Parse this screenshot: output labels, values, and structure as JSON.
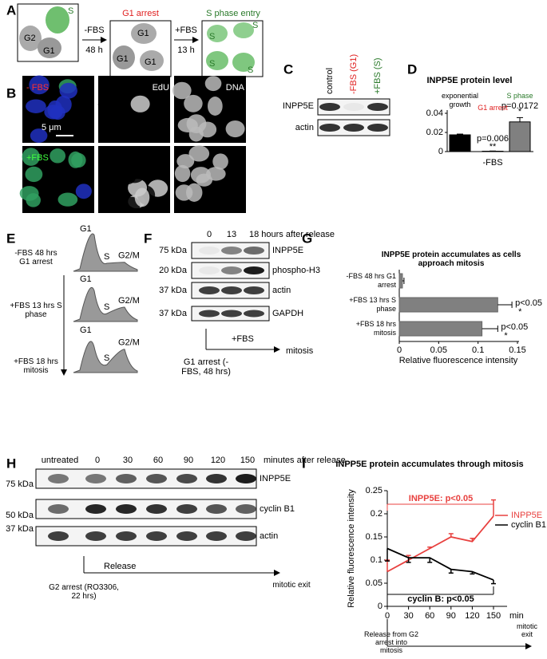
{
  "letters": [
    "A",
    "B",
    "C",
    "D",
    "E",
    "F",
    "G",
    "H",
    "I"
  ],
  "A": {
    "cells_1": [
      "S",
      "G2",
      "G1"
    ],
    "arrow_1": [
      "-FBS",
      "48 h"
    ],
    "heading_2": "G1 arrest",
    "cells_2": [
      "G1",
      "G1",
      "G1"
    ],
    "arrow_2": [
      "+FBS",
      "13 h"
    ],
    "heading_3": "S phase entry",
    "cells_3": [
      "S",
      "S",
      "S",
      "S"
    ]
  },
  "B": {
    "conditions": [
      "- FBS",
      "+FBS"
    ],
    "channels": [
      "EdU",
      "DNA"
    ],
    "scale": "5 μm"
  },
  "C": {
    "lanes": [
      "control",
      "-FBS (G1)",
      "+FBS (S)"
    ],
    "proteins": [
      "INPP5E",
      "actin"
    ]
  },
  "E": {
    "conditions": [
      "-FBS 48 hrs G1 arrest",
      "+FBS 13 hrs S phase",
      "+FBS 18 hrs mitosis"
    ],
    "phases": [
      "G1",
      "S",
      "G2/M"
    ]
  },
  "F": {
    "times": [
      "0",
      "13",
      "18 hours after release"
    ],
    "markers": [
      "75 kDa",
      "20 kDa",
      "37 kDa",
      "37 kDa"
    ],
    "proteins": [
      "INPP5E",
      "phospho-H3",
      "actin",
      "GAPDH"
    ],
    "treatment": "+FBS",
    "start": "G1 arrest (-FBS, 48 hrs)",
    "end": "mitosis"
  },
  "H": {
    "times": [
      "untreated",
      "0",
      "30",
      "60",
      "90",
      "120",
      "150",
      "minutes after release"
    ],
    "markers": [
      "75 kDa",
      "50 kDa",
      "37 kDa"
    ],
    "proteins": [
      "INPP5E",
      "cyclin B1",
      "actin"
    ],
    "treatment": "Release",
    "start": "G2 arrest (RO3306, 22 hrs)",
    "end": "mitotic exit"
  },
  "chart_data": [
    {
      "type": "bar",
      "title": "INPP5E protein level",
      "categories": [
        "exponential growth",
        "G1 arrest",
        "S phase"
      ],
      "category_colors": [
        "#000000",
        "#e02020",
        "#2a7a2a"
      ],
      "values": [
        0.0175,
        0.0004,
        0.031
      ],
      "errors": [
        0.0008,
        0.0002,
        0.0045
      ],
      "colors": [
        "#000000",
        "#000000",
        "#808080"
      ],
      "ylim": [
        0,
        0.04
      ],
      "yticks": [
        0,
        0.02,
        0.04
      ],
      "annotations": [
        "p=0.006",
        "**",
        "p=0.0172",
        "*"
      ],
      "group_label": "-FBS"
    },
    {
      "type": "bar",
      "horizontal": true,
      "title": "INPP5E protein accumulates as cells approach mitosis",
      "categories": [
        "-FBS 48 hrs G1 arrest",
        "+FBS 13 hrs S phase",
        "+FBS 18 hrs mitosis"
      ],
      "values": [
        0.004,
        0.125,
        0.105
      ],
      "errors": [
        0.002,
        0.018,
        0.02
      ],
      "color": "#808080",
      "xlim": [
        0,
        0.15
      ],
      "xticks": [
        0,
        0.05,
        0.1,
        0.15
      ],
      "xlabel": "Relative fluorescence intensity",
      "annotations": [
        "p<0.05",
        "*",
        "p<0.05",
        "*"
      ]
    },
    {
      "type": "line",
      "title": "INPP5E protein accumulates through mitosis",
      "x": [
        0,
        30,
        60,
        90,
        120,
        150
      ],
      "xlim": [
        0,
        150
      ],
      "xticks": [
        0,
        30,
        60,
        90,
        120,
        150
      ],
      "x_unit": "min",
      "ylim": [
        0,
        0.25
      ],
      "yticks": [
        0,
        0.05,
        0.1,
        0.15,
        0.2,
        0.25
      ],
      "ylabel": "Relative fluorescence intensity",
      "series": [
        {
          "name": "INPP5E",
          "color": "#e8413f",
          "values": [
            0.075,
            0.1,
            0.125,
            0.15,
            0.14,
            0.195
          ],
          "errors": [
            0.025,
            0.01,
            0.003,
            0.007,
            0.007,
            0.035
          ]
        },
        {
          "name": "cyclin B1",
          "color": "#000000",
          "values": [
            0.125,
            0.105,
            0.105,
            0.08,
            0.075,
            0.057
          ],
          "errors": [
            0.027,
            0.01,
            0.01,
            0.008,
            0.005,
            0.008
          ]
        }
      ],
      "annotations": [
        "INPP5E: p<0.05",
        "cyclin B: p<0.05"
      ],
      "start": "Release from G2 arrest into mitosis",
      "end": "mitotic exit"
    }
  ]
}
